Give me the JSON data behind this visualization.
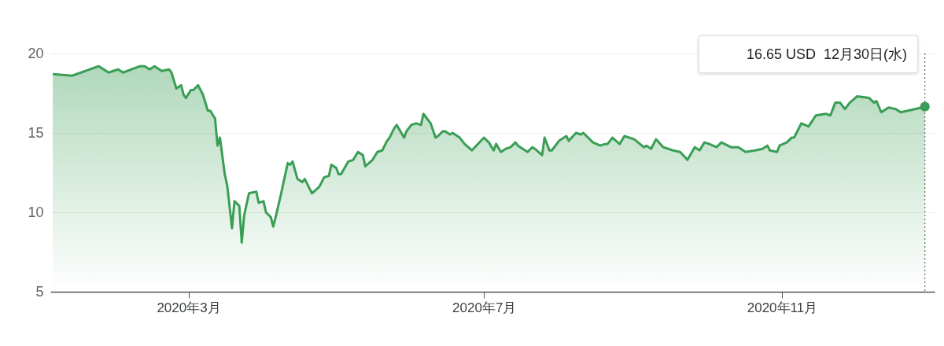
{
  "chart_data": {
    "type": "area",
    "x": [
      "2020-01-05",
      "2020-01-13",
      "2020-01-24",
      "2020-01-28",
      "2020-02-01",
      "2020-02-03",
      "2020-02-10",
      "2020-02-12",
      "2020-02-14",
      "2020-02-16",
      "2020-02-19",
      "2020-02-22",
      "2020-02-23",
      "2020-02-25",
      "2020-02-27",
      "2020-02-28",
      "2020-02-29",
      "2020-03-02",
      "2020-03-03",
      "2020-03-05",
      "2020-03-07",
      "2020-03-09",
      "2020-03-10",
      "2020-03-12",
      "2020-03-13",
      "2020-03-14",
      "2020-03-16",
      "2020-03-17",
      "2020-03-19",
      "2020-03-20",
      "2020-03-22",
      "2020-03-23",
      "2020-03-24",
      "2020-03-26",
      "2020-03-29",
      "2020-03-30",
      "2020-04-01",
      "2020-04-02",
      "2020-04-04",
      "2020-04-05",
      "2020-04-06",
      "2020-04-08",
      "2020-04-09",
      "2020-04-11",
      "2020-04-12",
      "2020-04-13",
      "2020-04-15",
      "2020-04-17",
      "2020-04-18",
      "2020-04-21",
      "2020-04-24",
      "2020-04-26",
      "2020-04-28",
      "2020-04-29",
      "2020-05-01",
      "2020-05-02",
      "2020-05-03",
      "2020-05-06",
      "2020-05-08",
      "2020-05-10",
      "2020-05-12",
      "2020-05-13",
      "2020-05-16",
      "2020-05-18",
      "2020-05-20",
      "2020-05-22",
      "2020-05-23",
      "2020-05-25",
      "2020-05-26",
      "2020-05-29",
      "2020-05-30",
      "2020-06-01",
      "2020-06-03",
      "2020-06-05",
      "2020-06-06",
      "2020-06-09",
      "2020-06-11",
      "2020-06-12",
      "2020-06-14",
      "2020-06-15",
      "2020-06-17",
      "2020-06-18",
      "2020-06-21",
      "2020-06-23",
      "2020-06-26",
      "2020-07-01",
      "2020-07-03",
      "2020-07-05",
      "2020-07-06",
      "2020-07-08",
      "2020-07-10",
      "2020-07-12",
      "2020-07-14",
      "2020-07-15",
      "2020-07-19",
      "2020-07-21",
      "2020-07-22",
      "2020-07-25",
      "2020-07-26",
      "2020-07-28",
      "2020-07-29",
      "2020-08-01",
      "2020-08-04",
      "2020-08-05",
      "2020-08-08",
      "2020-08-10",
      "2020-08-11",
      "2020-08-15",
      "2020-08-18",
      "2020-08-20",
      "2020-08-21",
      "2020-08-23",
      "2020-08-26",
      "2020-08-28",
      "2020-09-01",
      "2020-09-05",
      "2020-09-06",
      "2020-09-08",
      "2020-09-10",
      "2020-09-13",
      "2020-09-17",
      "2020-09-20",
      "2020-09-23",
      "2020-09-26",
      "2020-09-28",
      "2020-09-30",
      "2020-10-02",
      "2020-10-05",
      "2020-10-07",
      "2020-10-11",
      "2020-10-14",
      "2020-10-17",
      "2020-10-21",
      "2020-10-24",
      "2020-10-26",
      "2020-10-27",
      "2020-10-30",
      "2020-10-31",
      "2020-11-03",
      "2020-11-05",
      "2020-11-06",
      "2020-11-09",
      "2020-11-12",
      "2020-11-15",
      "2020-11-19",
      "2020-11-21",
      "2020-11-23",
      "2020-11-25",
      "2020-11-27",
      "2020-11-29",
      "2020-12-02",
      "2020-12-07",
      "2020-12-09",
      "2020-12-10",
      "2020-12-12",
      "2020-12-15",
      "2020-12-18",
      "2020-12-20",
      "2020-12-23",
      "2020-12-30"
    ],
    "series": [
      {
        "color": "#3a9e55",
        "values": [
          18.7,
          18.6,
          19.2,
          18.8,
          19.0,
          18.8,
          19.2,
          19.2,
          19.0,
          19.2,
          18.9,
          19.0,
          18.8,
          17.8,
          18.0,
          17.4,
          17.2,
          17.7,
          17.7,
          18.0,
          17.4,
          16.4,
          16.4,
          15.9,
          14.2,
          14.7,
          12.4,
          11.7,
          9.0,
          10.7,
          10.4,
          8.1,
          9.8,
          11.2,
          11.3,
          10.6,
          10.7,
          10.0,
          9.7,
          9.1,
          9.7,
          11.0,
          11.7,
          13.1,
          13.0,
          13.2,
          12.1,
          11.9,
          12.1,
          11.2,
          11.6,
          12.2,
          12.3,
          13.0,
          12.8,
          12.4,
          12.4,
          13.2,
          13.3,
          13.8,
          13.6,
          12.9,
          13.3,
          13.8,
          13.9,
          14.5,
          14.7,
          15.3,
          15.5,
          14.7,
          15.1,
          15.5,
          15.6,
          15.5,
          16.2,
          15.6,
          14.7,
          14.8,
          15.1,
          15.1,
          14.9,
          15.0,
          14.7,
          14.3,
          13.9,
          14.7,
          14.4,
          13.9,
          14.3,
          13.8,
          14.0,
          14.1,
          14.4,
          14.2,
          13.8,
          14.1,
          14.0,
          13.6,
          14.7,
          13.9,
          13.9,
          14.5,
          14.8,
          14.5,
          15.0,
          14.9,
          15.0,
          14.4,
          14.2,
          14.3,
          14.3,
          14.7,
          14.3,
          14.8,
          14.6,
          14.1,
          14.2,
          14.0,
          14.6,
          14.1,
          13.9,
          13.8,
          13.3,
          14.1,
          13.9,
          14.4,
          14.3,
          14.1,
          14.4,
          14.1,
          14.1,
          13.8,
          13.9,
          14.0,
          14.2,
          13.9,
          13.8,
          14.2,
          14.4,
          14.7,
          14.7,
          15.6,
          15.4,
          16.1,
          16.2,
          16.1,
          16.9,
          16.9,
          16.5,
          16.9,
          17.3,
          17.2,
          16.9,
          17.0,
          16.3,
          16.6,
          16.5,
          16.3,
          16.4,
          16.65
        ]
      }
    ],
    "xlim": [
      "2020-01-04",
      "2021-01-03"
    ],
    "xticks": [
      {
        "value": "2020-03-01",
        "label": "2020年3月"
      },
      {
        "value": "2020-07-01",
        "label": "2020年7月"
      },
      {
        "value": "2020-11-01",
        "label": "2020年11月"
      }
    ],
    "ylim": [
      5,
      20
    ],
    "yticks": [
      5,
      10,
      15,
      20
    ],
    "grid": "y",
    "ref_lines": [
      {
        "axis": "x",
        "value": "2020-12-30",
        "line_style": "dotted",
        "color": "#666666"
      }
    ],
    "annotations": [
      "16.65 USD  12月30日(水)"
    ]
  }
}
